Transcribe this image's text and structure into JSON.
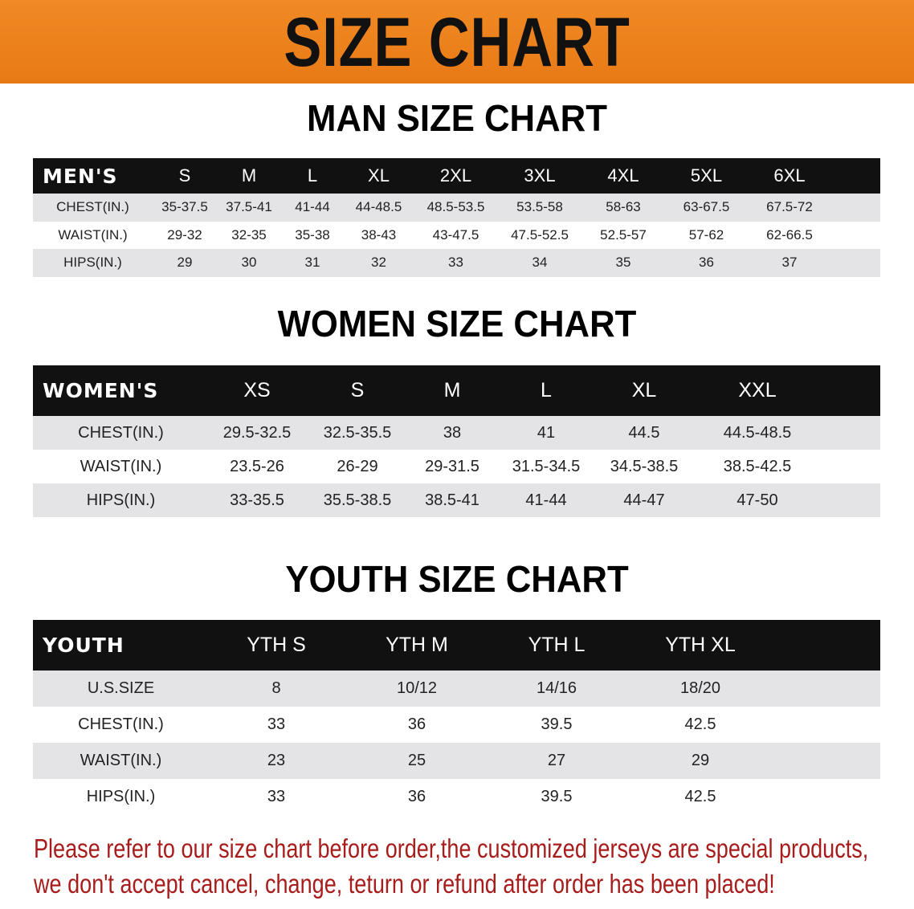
{
  "banner": {
    "title": "SIZE CHART",
    "color": "#ec8220"
  },
  "men": {
    "title": "MAN SIZE CHART",
    "header": [
      "MEN'S",
      "S",
      "M",
      "L",
      "XL",
      "2XL",
      "3XL",
      "4XL",
      "5XL",
      "6XL"
    ],
    "rows": [
      [
        "CHEST(IN.)",
        "35-37.5",
        "37.5-41",
        "41-44",
        "44-48.5",
        "48.5-53.5",
        "53.5-58",
        "58-63",
        "63-67.5",
        "67.5-72"
      ],
      [
        "WAIST(IN.)",
        "29-32",
        "32-35",
        "35-38",
        "38-43",
        "43-47.5",
        "47.5-52.5",
        "52.5-57",
        "57-62",
        "62-66.5"
      ],
      [
        "HIPS(IN.)",
        "29",
        "30",
        "31",
        "32",
        "33",
        "34",
        "35",
        "36",
        "37"
      ]
    ]
  },
  "women": {
    "title": "WOMEN SIZE CHART",
    "header": [
      "WOMEN'S",
      "XS",
      "S",
      "M",
      "L",
      "XL",
      "XXL"
    ],
    "rows": [
      [
        "CHEST(IN.)",
        "29.5-32.5",
        "32.5-35.5",
        "38",
        "41",
        "44.5",
        "44.5-48.5"
      ],
      [
        "WAIST(IN.)",
        "23.5-26",
        "26-29",
        "29-31.5",
        "31.5-34.5",
        "34.5-38.5",
        "38.5-42.5"
      ],
      [
        "HIPS(IN.)",
        "33-35.5",
        "35.5-38.5",
        "38.5-41",
        "41-44",
        "44-47",
        "47-50"
      ]
    ]
  },
  "youth": {
    "title": "YOUTH SIZE CHART",
    "header": [
      "YOUTH",
      "YTH S",
      "YTH M",
      "YTH L",
      "YTH XL"
    ],
    "rows": [
      [
        "U.S.SIZE",
        "8",
        "10/12",
        "14/16",
        "18/20"
      ],
      [
        "CHEST(IN.)",
        "33",
        "36",
        "39.5",
        "42.5"
      ],
      [
        "WAIST(IN.)",
        "23",
        "25",
        "27",
        "29"
      ],
      [
        "HIPS(IN.)",
        "33",
        "36",
        "39.5",
        "42.5"
      ]
    ]
  },
  "note": {
    "line1": "Please refer to our size chart before order,the customized jerseys are special products,",
    "line2": "we don't accept cancel, change, teturn or refund after order has been placed!",
    "color": "#a81c1c"
  }
}
